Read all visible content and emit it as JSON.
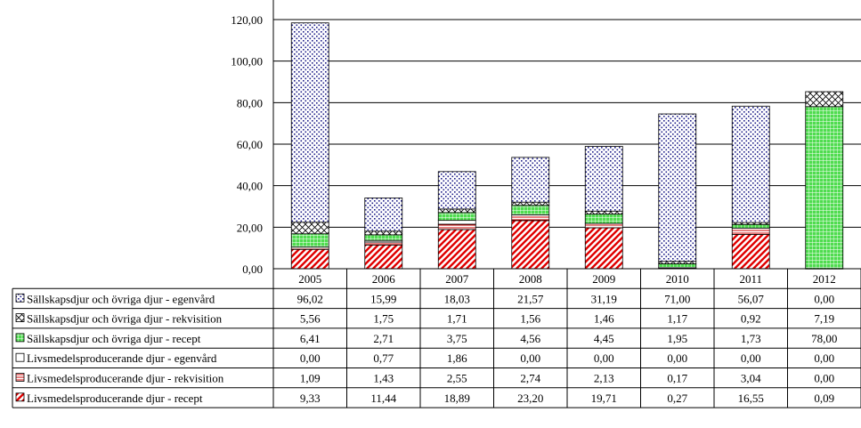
{
  "chart_data": {
    "type": "bar",
    "stacked": true,
    "title": "",
    "xlabel": "",
    "ylabel": "",
    "ylim": [
      0,
      120
    ],
    "yticks": [
      "0,00",
      "20,00",
      "40,00",
      "60,00",
      "80,00",
      "100,00",
      "120,00"
    ],
    "grid": true,
    "legend": "data-table-below",
    "categories": [
      "2005",
      "2006",
      "2007",
      "2008",
      "2009",
      "2010",
      "2011",
      "2012"
    ],
    "series": [
      {
        "name": "Livsmedelsproducerande djur - recept",
        "pattern": "diagonal-red",
        "color": "#ff0000",
        "values": [
          9.33,
          11.44,
          18.89,
          23.2,
          19.71,
          0.27,
          16.55,
          0.09
        ],
        "labels": [
          "9,33",
          "11,44",
          "18,89",
          "23,20",
          "19,71",
          "0,27",
          "16,55",
          "0,09"
        ]
      },
      {
        "name": "Livsmedelsproducerande djur - rekvisition",
        "pattern": "red-lines",
        "color": "#cc0000",
        "values": [
          1.09,
          1.43,
          2.55,
          2.74,
          2.13,
          0.17,
          3.04,
          0.0
        ],
        "labels": [
          "1,09",
          "1,43",
          "2,55",
          "2,74",
          "2,13",
          "0,17",
          "3,04",
          "0,00"
        ]
      },
      {
        "name": "Livsmedelsproducerande djur - egenvård",
        "pattern": "white",
        "color": "#ffffff",
        "values": [
          0.0,
          0.77,
          1.86,
          0.0,
          0.0,
          0.0,
          0.0,
          0.0
        ],
        "labels": [
          "0,00",
          "0,77",
          "1,86",
          "0,00",
          "0,00",
          "0,00",
          "0,00",
          "0,00"
        ]
      },
      {
        "name": "Sällskapsdjur och övriga djur - recept",
        "pattern": "green-grid",
        "color": "#33cc33",
        "values": [
          6.41,
          2.71,
          3.75,
          4.56,
          4.45,
          1.95,
          1.73,
          78.0
        ],
        "labels": [
          "6,41",
          "2,71",
          "3,75",
          "4,56",
          "4,45",
          "1,95",
          "1,73",
          "78,00"
        ]
      },
      {
        "name": "Sällskapsdjur och övriga djur - rekvisition",
        "pattern": "crosshatch",
        "color": "#000000",
        "values": [
          5.56,
          1.75,
          1.71,
          1.56,
          1.46,
          1.17,
          0.92,
          7.19
        ],
        "labels": [
          "5,56",
          "1,75",
          "1,71",
          "1,56",
          "1,46",
          "1,17",
          "0,92",
          "7,19"
        ]
      },
      {
        "name": "Sällskapsdjur och övriga djur - egenvård",
        "pattern": "blue-dots",
        "color": "#000080",
        "values": [
          96.02,
          15.99,
          18.03,
          21.57,
          31.19,
          71.0,
          56.07,
          0.0
        ],
        "labels": [
          "96,02",
          "15,99",
          "18,03",
          "21,57",
          "31,19",
          "71,00",
          "56,07",
          "0,00"
        ]
      }
    ],
    "table_order": [
      "Sällskapsdjur och övriga djur - egenvård",
      "Sällskapsdjur och övriga djur - rekvisition",
      "Sällskapsdjur och övriga djur - recept",
      "Livsmedelsproducerande djur - egenvård",
      "Livsmedelsproducerande djur - rekvisition",
      "Livsmedelsproducerande djur - recept"
    ]
  }
}
